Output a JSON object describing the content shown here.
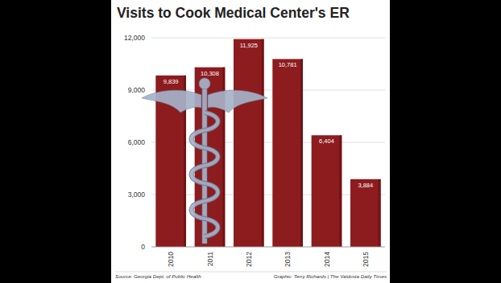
{
  "chart_data": {
    "type": "bar",
    "title": "Visits to Cook Medical Center's ER",
    "categories": [
      "2010",
      "2011",
      "2012",
      "2013",
      "2014",
      "2015"
    ],
    "values": [
      9839,
      10308,
      11925,
      10781,
      6404,
      3884
    ],
    "value_labels": [
      "9,839",
      "10,308",
      "11,925",
      "10,781",
      "6,404",
      "3,884"
    ],
    "data_labels": true,
    "color": "#8d1c1f",
    "ylim": [
      0,
      12000
    ],
    "yticks": [
      0,
      {
        "value": 3000,
        "label": "3,000"
      },
      {
        "value": 6000,
        "label": "6,000"
      },
      {
        "value": 9000,
        "label": "9,000"
      },
      {
        "value": 12000,
        "label": "12,000"
      }
    ],
    "grid": true,
    "annotations": [
      "Source: Georgia Dept. of Public Health",
      "Graphic: Terry Richards | The Valdosta Daily Times"
    ]
  }
}
